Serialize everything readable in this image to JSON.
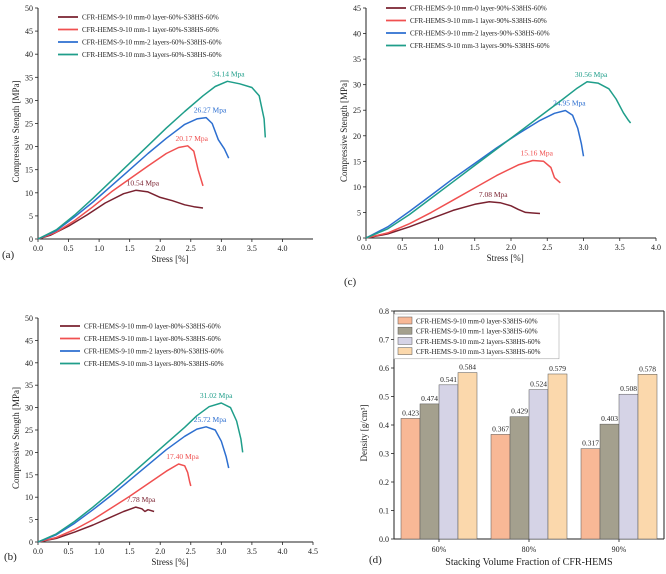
{
  "chart_data": [
    {
      "panel": "(a)",
      "type": "line",
      "xlabel": "Stress [%]",
      "ylabel": "Compressive Stength [MPa]",
      "xlim": [
        0,
        4.5
      ],
      "ylim": [
        0,
        50
      ],
      "xticks": [
        "0.0",
        "0.5",
        "1.0",
        "1.5",
        "2.0",
        "2.5",
        "3.0",
        "3.5",
        "4.0"
      ],
      "yticks": [
        "0",
        "5",
        "10",
        "15",
        "20",
        "25",
        "30",
        "35",
        "40",
        "45",
        "50"
      ],
      "series": [
        {
          "name": "CFR-HEMS-9-10 mm-0 layer-60%-S38HS-60%",
          "color": "#7a2230",
          "x": [
            0,
            0.2,
            0.5,
            0.8,
            1.1,
            1.4,
            1.6,
            1.8,
            2.0,
            2.2,
            2.4,
            2.55,
            2.7
          ],
          "y": [
            0,
            0.8,
            2.8,
            5.2,
            7.8,
            9.8,
            10.54,
            10.2,
            9.0,
            8.3,
            7.4,
            7.0,
            6.7
          ],
          "peak_label": "10.54 Mpa",
          "peak": [
            1.65,
            10.54
          ]
        },
        {
          "name": "CFR-HEMS-9-10 mm-1 layer-60%-S38HS-60%",
          "color": "#f05050",
          "x": [
            0,
            0.3,
            0.6,
            0.9,
            1.2,
            1.5,
            1.8,
            2.1,
            2.3,
            2.45,
            2.55,
            2.62,
            2.7
          ],
          "y": [
            0,
            1.5,
            4.0,
            7.0,
            10.2,
            13.0,
            15.8,
            18.5,
            19.8,
            20.17,
            19.0,
            15.0,
            11.5
          ],
          "peak_label": "20.17 Mpa",
          "peak": [
            2.45,
            20.17
          ]
        },
        {
          "name": "CFR-HEMS-9-10 mm-2 layers-60%-S38HS-60%",
          "color": "#2d6fd0",
          "x": [
            0,
            0.3,
            0.6,
            0.9,
            1.2,
            1.5,
            1.8,
            2.1,
            2.4,
            2.6,
            2.75,
            2.85,
            2.95,
            3.05,
            3.12
          ],
          "y": [
            0,
            1.8,
            4.8,
            8.0,
            11.5,
            15.0,
            18.5,
            21.8,
            24.8,
            26.0,
            26.27,
            25.0,
            21.5,
            19.5,
            17.5
          ],
          "peak_label": "26.27 Mpa",
          "peak": [
            2.75,
            26.27
          ]
        },
        {
          "name": "CFR-HEMS-9-10 mm-3 layers-60%-S38HS-60%",
          "color": "#1f9e8a",
          "x": [
            0,
            0.3,
            0.6,
            0.9,
            1.2,
            1.5,
            1.8,
            2.1,
            2.4,
            2.7,
            2.9,
            3.1,
            3.3,
            3.5,
            3.62,
            3.7,
            3.72
          ],
          "y": [
            0,
            2.0,
            5.2,
            8.8,
            12.6,
            16.4,
            20.2,
            24.0,
            27.6,
            31.0,
            33.0,
            34.14,
            33.6,
            32.8,
            31.0,
            26.0,
            22.0
          ],
          "peak_label": "34.14 Mpa",
          "peak": [
            3.05,
            34.14
          ]
        }
      ]
    },
    {
      "panel": "(b)",
      "type": "line",
      "xlabel": "Stress [%]",
      "ylabel": "Compressive Stength [MPa]",
      "xlim": [
        0,
        4.5
      ],
      "ylim": [
        0,
        50
      ],
      "xticks": [
        "0.0",
        "0.5",
        "1.0",
        "1.5",
        "2.0",
        "2.5",
        "3.0",
        "3.5",
        "4.0",
        "4.5"
      ],
      "yticks": [
        "0",
        "5",
        "10",
        "15",
        "20",
        "25",
        "30",
        "35",
        "40",
        "45",
        "50"
      ],
      "series": [
        {
          "name": "CFR-HEMS-9-10 mm-0 layer-80%-S38HS-60%",
          "color": "#7a2230",
          "x": [
            0,
            0.3,
            0.6,
            0.9,
            1.2,
            1.4,
            1.6,
            1.7,
            1.75,
            1.8,
            1.9
          ],
          "y": [
            0,
            0.8,
            2.2,
            3.8,
            5.6,
            6.8,
            7.78,
            7.4,
            6.8,
            7.2,
            6.8
          ],
          "peak_label": "7.78 Mpa",
          "peak": [
            1.62,
            7.78
          ]
        },
        {
          "name": "CFR-HEMS-9-10 mm-1 layer-80%-S38HS-60%",
          "color": "#f05050",
          "x": [
            0,
            0.3,
            0.6,
            0.9,
            1.2,
            1.5,
            1.8,
            2.1,
            2.3,
            2.4,
            2.45,
            2.48,
            2.5
          ],
          "y": [
            0,
            1.0,
            2.8,
            5.0,
            7.6,
            10.2,
            13.0,
            15.8,
            17.4,
            17.0,
            15.5,
            13.5,
            12.5
          ],
          "peak_label": "17.40 Mpa",
          "peak": [
            2.3,
            17.4
          ]
        },
        {
          "name": "CFR-HEMS-9-10 mm-2 layers-80%-S38HS-60%",
          "color": "#2d6fd0",
          "x": [
            0,
            0.3,
            0.6,
            0.9,
            1.2,
            1.5,
            1.8,
            2.1,
            2.4,
            2.6,
            2.75,
            2.9,
            3.0,
            3.08,
            3.12
          ],
          "y": [
            0,
            1.6,
            4.2,
            7.2,
            10.4,
            13.8,
            17.2,
            20.6,
            23.6,
            25.2,
            25.72,
            25.0,
            22.5,
            19.0,
            16.5
          ],
          "peak_label": "25.72 Mpa",
          "peak": [
            2.75,
            25.72
          ]
        },
        {
          "name": "CFR-HEMS-9-10 mm-3 layers-80%-S38HS-60%",
          "color": "#1f9e8a",
          "x": [
            0,
            0.3,
            0.6,
            0.9,
            1.2,
            1.5,
            1.8,
            2.1,
            2.4,
            2.6,
            2.8,
            3.0,
            3.15,
            3.25,
            3.32,
            3.35
          ],
          "y": [
            0,
            1.8,
            4.6,
            7.8,
            11.2,
            14.8,
            18.4,
            22.0,
            25.6,
            28.2,
            30.2,
            31.02,
            30.0,
            27.0,
            23.0,
            20.0
          ],
          "peak_label": "31.02 Mpa",
          "peak": [
            2.85,
            31.02
          ]
        }
      ]
    },
    {
      "panel": "(c)",
      "type": "line",
      "xlabel": "Stress [%]",
      "ylabel": "Compressive Stength [MPa]",
      "xlim": [
        0,
        4.0
      ],
      "ylim": [
        0,
        45
      ],
      "xticks": [
        "0.0",
        "0.5",
        "1.0",
        "1.5",
        "2.0",
        "2.5",
        "3.0",
        "3.5",
        "4.0"
      ],
      "yticks": [
        "0",
        "5",
        "10",
        "15",
        "20",
        "25",
        "30",
        "35",
        "40",
        "45"
      ],
      "series": [
        {
          "name": "CFR-HEMS-9-10 mm-0 layer-90%-S38HS-60%",
          "color": "#7a2230",
          "x": [
            0,
            0.3,
            0.6,
            0.9,
            1.2,
            1.5,
            1.7,
            1.85,
            2.0,
            2.1,
            2.2,
            2.3,
            2.4
          ],
          "y": [
            0,
            0.8,
            2.2,
            3.8,
            5.4,
            6.6,
            7.08,
            6.9,
            6.3,
            5.6,
            5.0,
            4.9,
            4.8
          ],
          "peak_label": "7.08 Mpa",
          "peak": [
            1.7,
            7.08
          ]
        },
        {
          "name": "CFR-HEMS-9-10 mm-1 layer-90%-S38HS-60%",
          "color": "#f05050",
          "x": [
            0,
            0.3,
            0.6,
            0.9,
            1.2,
            1.5,
            1.8,
            2.1,
            2.3,
            2.45,
            2.55,
            2.6,
            2.68
          ],
          "y": [
            0,
            1.0,
            2.8,
            5.0,
            7.4,
            9.8,
            12.2,
            14.3,
            15.16,
            15.0,
            13.8,
            11.8,
            10.8
          ],
          "peak_label": "15.16 Mpa",
          "peak": [
            2.3,
            15.16
          ]
        },
        {
          "name": "CFR-HEMS-9-10 mm-2 layers-90%-S38HS-60%",
          "color": "#2d6fd0",
          "x": [
            0,
            0.3,
            0.6,
            0.9,
            1.2,
            1.5,
            1.8,
            2.1,
            2.4,
            2.6,
            2.75,
            2.85,
            2.92,
            2.97,
            3.0
          ],
          "y": [
            0,
            2.2,
            5.2,
            8.4,
            11.6,
            14.6,
            17.6,
            20.4,
            23.0,
            24.4,
            24.95,
            24.0,
            21.5,
            18.5,
            16.0
          ],
          "peak_label": "24.95 Mpa",
          "peak": [
            2.75,
            24.95
          ]
        },
        {
          "name": "CFR-HEMS-9-10 mm-3 layers-90%-S38HS-60%",
          "color": "#1f9e8a",
          "x": [
            0,
            0.3,
            0.6,
            0.9,
            1.2,
            1.5,
            1.8,
            2.1,
            2.4,
            2.7,
            2.9,
            3.05,
            3.2,
            3.35,
            3.45,
            3.55,
            3.62,
            3.65
          ],
          "y": [
            0,
            1.8,
            4.6,
            7.8,
            11.0,
            14.2,
            17.4,
            20.6,
            23.8,
            27.0,
            29.2,
            30.56,
            30.3,
            29.2,
            27.2,
            24.5,
            23.0,
            22.5
          ],
          "peak_label": "30.56 Mpa",
          "peak": [
            3.05,
            30.56
          ]
        }
      ]
    },
    {
      "panel": "(d)",
      "type": "bar",
      "xlabel": "Stacking Volume Fraction of CFR-HEMS",
      "ylabel": "Density [g/cm³]",
      "ylim": [
        0,
        0.8
      ],
      "yticks": [
        "0.0",
        "0.1",
        "0.2",
        "0.3",
        "0.4",
        "0.5",
        "0.6",
        "0.7",
        "0.8"
      ],
      "categories": [
        "60%",
        "80%",
        "90%"
      ],
      "series": [
        {
          "name": "CFR-HEMS-9-10 mm-0 layer-S38HS-60%",
          "color": "#f8b896",
          "values": [
            0.423,
            0.367,
            0.317
          ],
          "labels": [
            "0.423",
            "0.367",
            "0.317"
          ]
        },
        {
          "name": "CFR-HEMS-9-10 mm-1 layer-S38HS-60%",
          "color": "#a4a08e",
          "values": [
            0.474,
            0.429,
            0.403
          ],
          "labels": [
            "0.474",
            "0.429",
            "0.403"
          ]
        },
        {
          "name": "CFR-HEMS-9-10 mm-2 layers-S38HS-60%",
          "color": "#d5d3e6",
          "values": [
            0.541,
            0.524,
            0.508
          ],
          "labels": [
            "0.541",
            "0.524",
            "0.508"
          ]
        },
        {
          "name": "CFR-HEMS-9-10 mm-3 layers-S38HS-60%",
          "color": "#fbd8ac",
          "values": [
            0.584,
            0.579,
            0.578
          ],
          "labels": [
            "0.584",
            "0.579",
            "0.578"
          ]
        }
      ]
    }
  ]
}
